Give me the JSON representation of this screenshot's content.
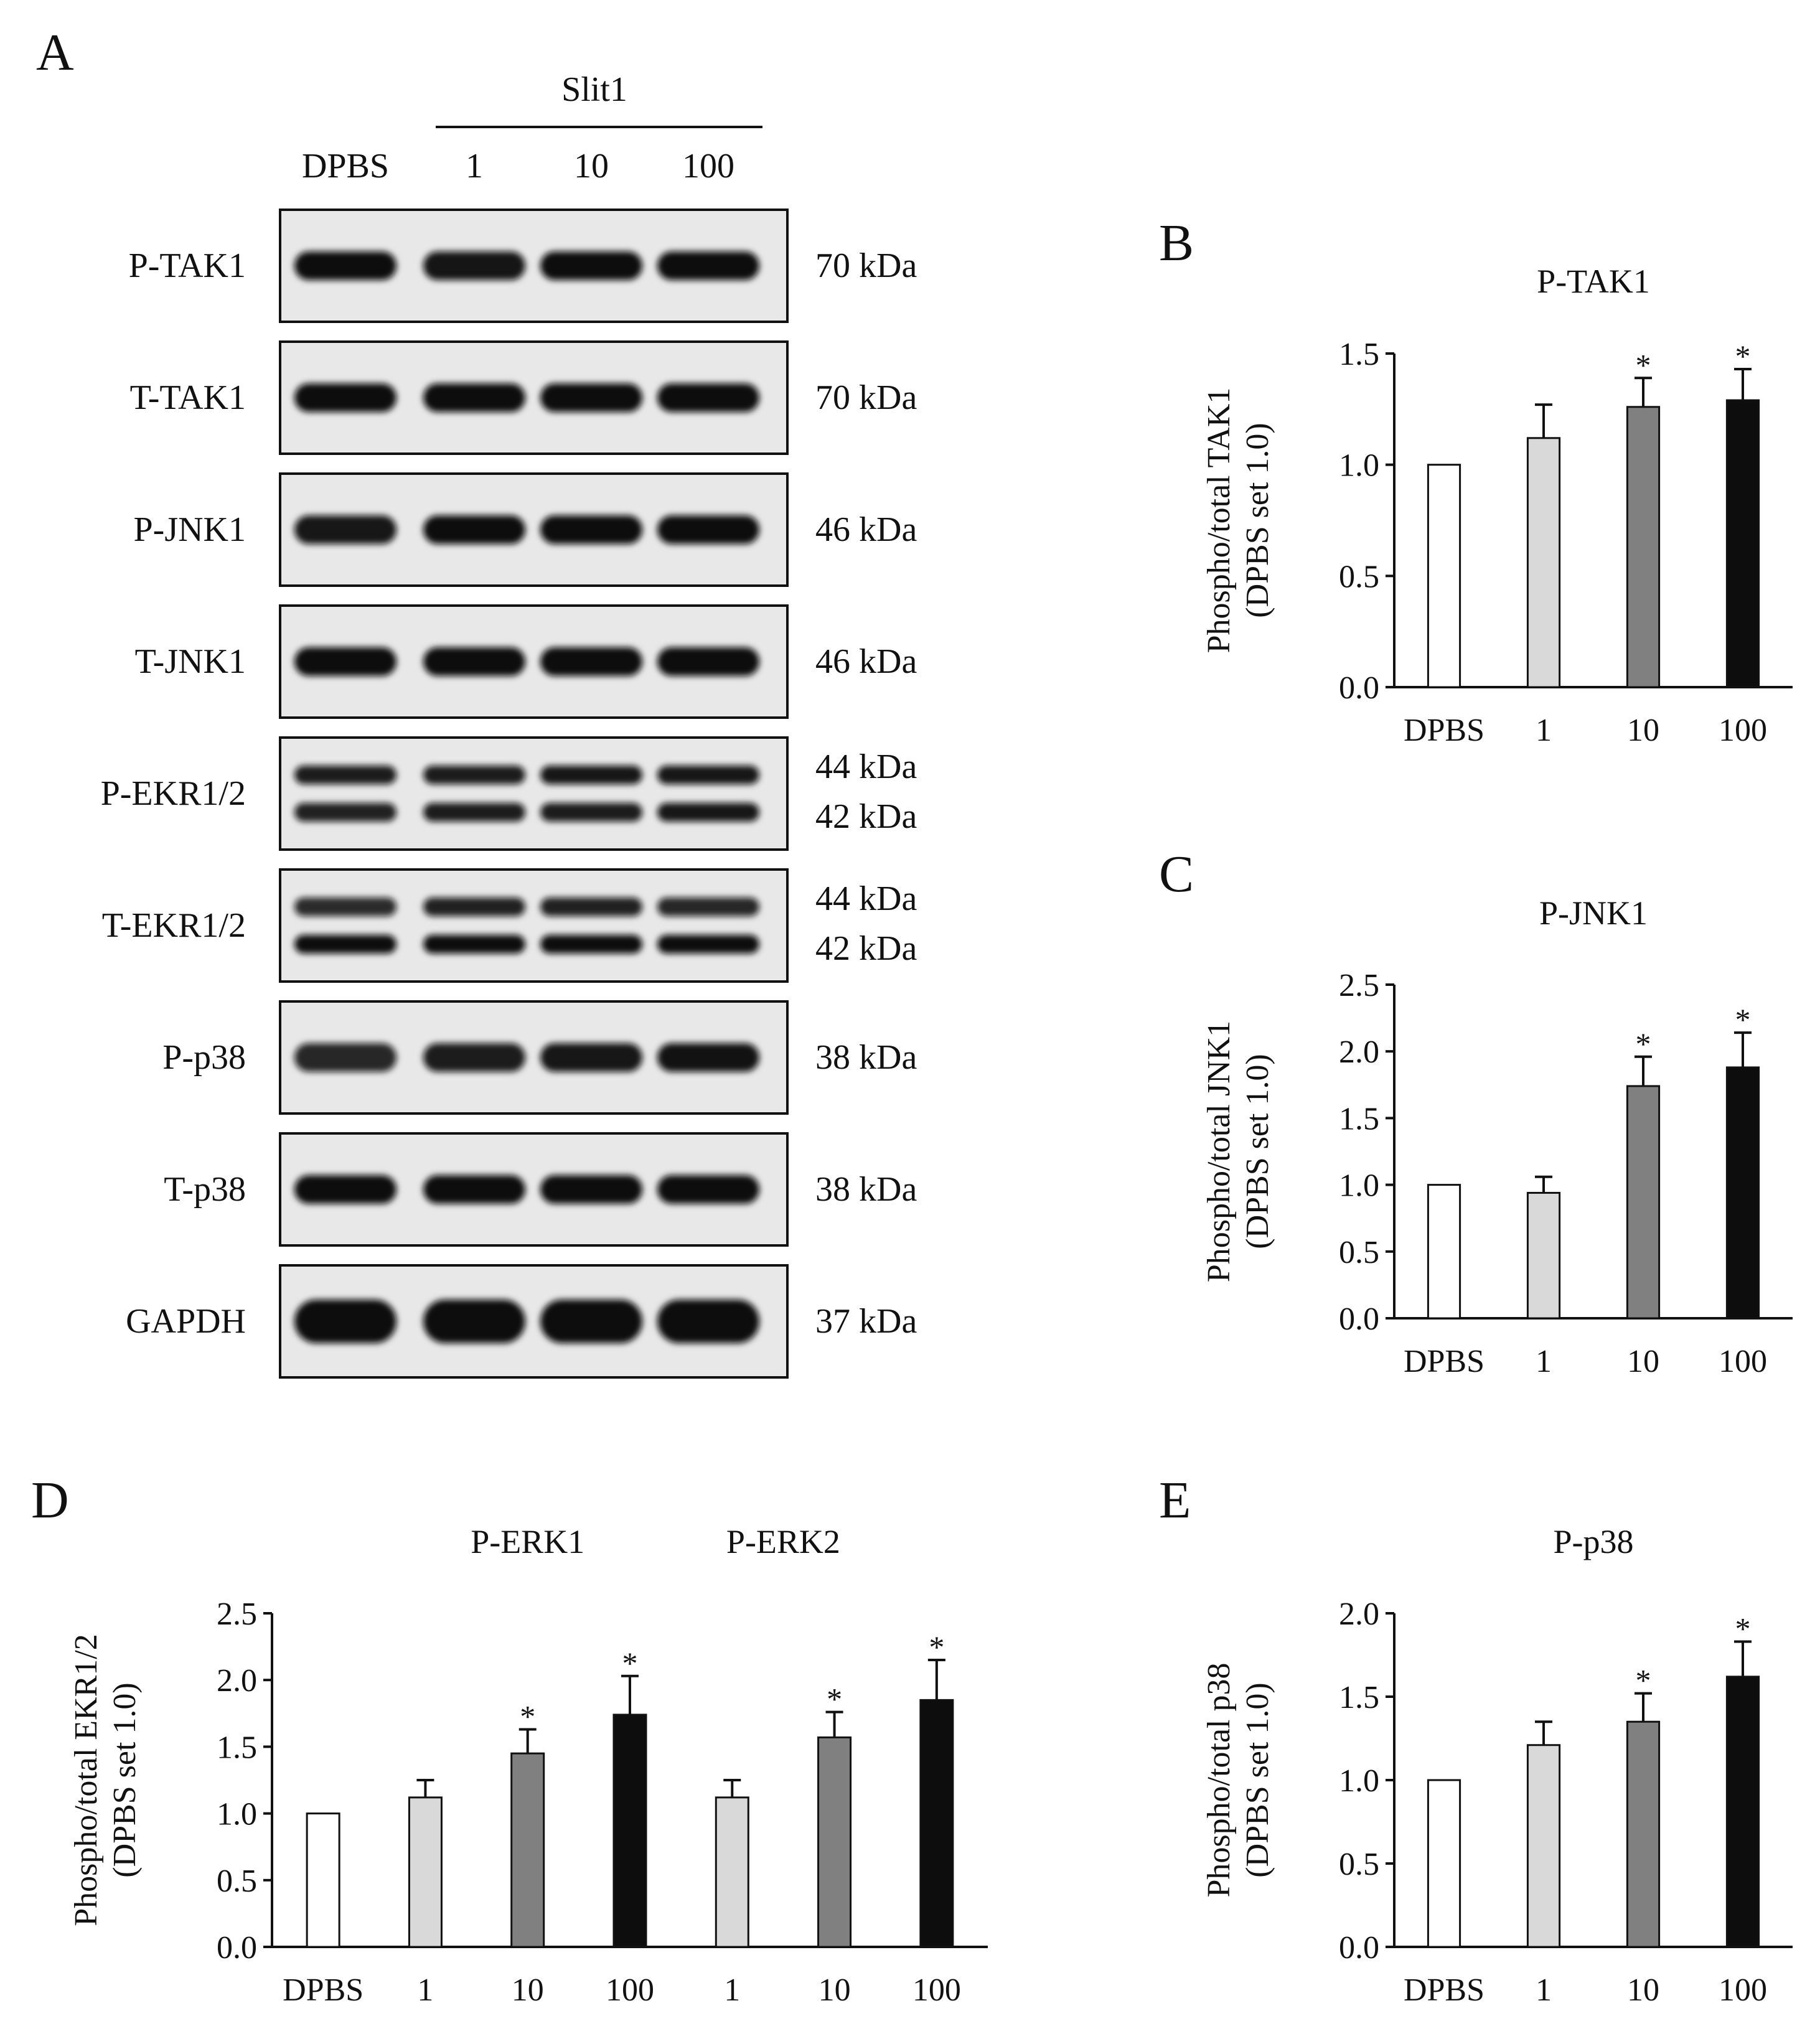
{
  "panels": {
    "A": "A",
    "B": "B",
    "C": "C",
    "D": "D",
    "E": "E"
  },
  "blot": {
    "treatment_group": "Slit1",
    "lane_labels": [
      "DPBS",
      "1",
      "10",
      "100"
    ],
    "rows": [
      {
        "label": "P-TAK1",
        "sizes": [
          "70 kDa"
        ],
        "bands": [
          [
            1.0,
            0.92,
            1.0,
            1.0
          ]
        ]
      },
      {
        "label": "T-TAK1",
        "sizes": [
          "70 kDa"
        ],
        "bands": [
          [
            1.0,
            1.0,
            1.0,
            1.0
          ]
        ]
      },
      {
        "label": "P-JNK1",
        "sizes": [
          "46 kDa"
        ],
        "bands": [
          [
            0.9,
            1.0,
            1.0,
            1.0
          ]
        ]
      },
      {
        "label": "T-JNK1",
        "sizes": [
          "46 kDa"
        ],
        "bands": [
          [
            1.0,
            1.0,
            1.0,
            1.0
          ]
        ]
      },
      {
        "label": "P-EKR1/2",
        "sizes": [
          "44 kDa",
          "42 kDa"
        ],
        "bands": [
          [
            0.85,
            0.85,
            0.9,
            0.9
          ],
          [
            0.8,
            0.85,
            0.85,
            0.9
          ]
        ]
      },
      {
        "label": "T-EKR1/2",
        "sizes": [
          "44 kDa",
          "42 kDa"
        ],
        "bands": [
          [
            0.7,
            0.8,
            0.8,
            0.75
          ],
          [
            1.0,
            1.0,
            1.0,
            1.0
          ]
        ]
      },
      {
        "label": "P-p38",
        "sizes": [
          "38 kDa"
        ],
        "bands": [
          [
            0.75,
            0.85,
            0.9,
            0.95
          ]
        ]
      },
      {
        "label": "T-p38",
        "sizes": [
          "38 kDa"
        ],
        "bands": [
          [
            1.0,
            1.0,
            1.0,
            1.0
          ]
        ]
      },
      {
        "label": "GAPDH",
        "sizes": [
          "37 kDa"
        ],
        "bands": [
          [
            1.0,
            1.0,
            1.0,
            1.0
          ]
        ]
      }
    ]
  },
  "colors": {
    "DPBS": "#ffffff",
    "1": "#d9d9d9",
    "10": "#808080",
    "100": "#0d0d0d"
  },
  "chart_data": [
    {
      "panel": "B",
      "type": "bar",
      "title": "P-TAK1",
      "ylabel_lines": [
        "Phospho/total TAK1",
        "(DPBS set 1.0)"
      ],
      "categories": [
        "DPBS",
        "1",
        "10",
        "100"
      ],
      "values": [
        1.0,
        1.12,
        1.26,
        1.29
      ],
      "errors": [
        0,
        0.15,
        0.13,
        0.14
      ],
      "significant": [
        false,
        false,
        true,
        true
      ],
      "ylim": [
        0,
        1.5
      ],
      "yticks": [
        "0.0",
        "0.5",
        "1.0",
        "1.5"
      ]
    },
    {
      "panel": "C",
      "type": "bar",
      "title": "P-JNK1",
      "ylabel_lines": [
        "Phospho/total JNK1",
        "(DPBS set 1.0)"
      ],
      "categories": [
        "DPBS",
        "1",
        "10",
        "100"
      ],
      "values": [
        1.0,
        0.94,
        1.74,
        1.88
      ],
      "errors": [
        0,
        0.12,
        0.22,
        0.26
      ],
      "significant": [
        false,
        false,
        true,
        true
      ],
      "ylim": [
        0,
        2.5
      ],
      "yticks": [
        "0.0",
        "0.5",
        "1.0",
        "1.5",
        "2.0",
        "2.5"
      ]
    },
    {
      "panel": "D",
      "type": "bar",
      "group_labels": [
        "P-ERK1",
        "P-ERK2"
      ],
      "ylabel_lines": [
        "Phospho/total EKR1/2",
        "(DPBS set 1.0)"
      ],
      "categories": [
        "DPBS",
        "1",
        "10",
        "100",
        "1",
        "10",
        "100"
      ],
      "values": [
        1.0,
        1.12,
        1.45,
        1.74,
        1.12,
        1.57,
        1.85
      ],
      "errors": [
        0,
        0.13,
        0.18,
        0.29,
        0.13,
        0.19,
        0.3
      ],
      "significant": [
        false,
        false,
        true,
        true,
        false,
        true,
        true
      ],
      "bar_color_keys": [
        "DPBS",
        "1",
        "10",
        "100",
        "1",
        "10",
        "100"
      ],
      "ylim": [
        0,
        2.5
      ],
      "yticks": [
        "0.0",
        "0.5",
        "1.0",
        "1.5",
        "2.0",
        "2.5"
      ]
    },
    {
      "panel": "E",
      "type": "bar",
      "title": "P-p38",
      "ylabel_lines": [
        "Phospho/total p38",
        "(DPBS set 1.0)"
      ],
      "categories": [
        "DPBS",
        "1",
        "10",
        "100"
      ],
      "values": [
        1.0,
        1.21,
        1.35,
        1.62
      ],
      "errors": [
        0,
        0.14,
        0.17,
        0.21
      ],
      "significant": [
        false,
        false,
        true,
        true
      ],
      "ylim": [
        0,
        2.0
      ],
      "yticks": [
        "0.0",
        "0.5",
        "1.0",
        "1.5",
        "2.0"
      ]
    }
  ],
  "star_symbol": "*"
}
